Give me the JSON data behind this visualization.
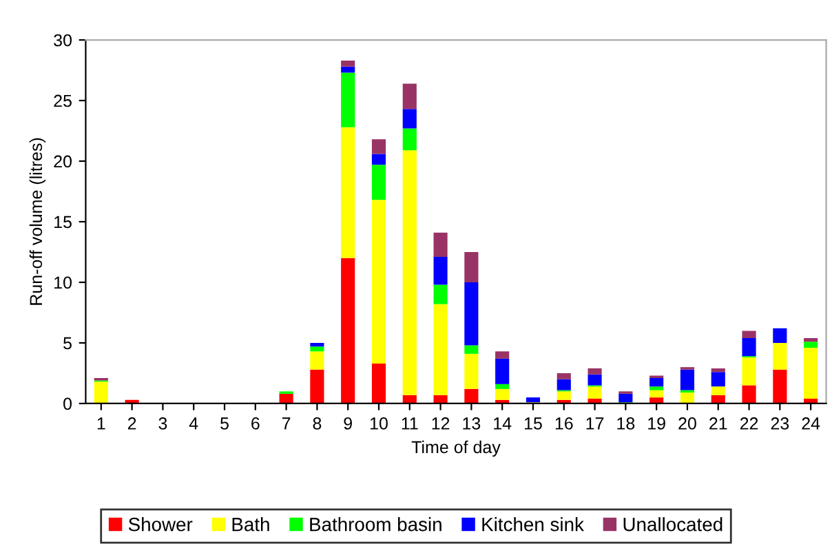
{
  "chart_data": {
    "type": "bar",
    "stacked": true,
    "xlabel": "Time of day",
    "ylabel": "Run-off volume (litres)",
    "categories": [
      "1",
      "2",
      "3",
      "4",
      "5",
      "6",
      "7",
      "8",
      "9",
      "10",
      "11",
      "12",
      "13",
      "14",
      "15",
      "16",
      "17",
      "18",
      "19",
      "20",
      "21",
      "22",
      "23",
      "24"
    ],
    "series": [
      {
        "name": "Shower",
        "color": "#ff0000",
        "values": [
          0,
          0.3,
          0,
          0,
          0,
          0,
          0.8,
          2.8,
          12,
          3.3,
          0.7,
          0.7,
          1.2,
          0.3,
          0,
          0.3,
          0.4,
          0,
          0.5,
          0,
          0.7,
          1.5,
          2.8,
          0.4
        ]
      },
      {
        "name": "Bath",
        "color": "#ffff00",
        "values": [
          1.8,
          0,
          0,
          0,
          0,
          0,
          0,
          1.5,
          10.8,
          13.5,
          20.2,
          7.5,
          2.9,
          0.9,
          0.1,
          0.7,
          1.0,
          0,
          0.6,
          0.9,
          0.7,
          2.3,
          2.2,
          4.2
        ]
      },
      {
        "name": "Bathroom basin",
        "color": "#00ff00",
        "values": [
          0.1,
          0,
          0,
          0,
          0,
          0,
          0.2,
          0.4,
          4.5,
          2.9,
          1.8,
          1.6,
          0.7,
          0.4,
          0,
          0.1,
          0.1,
          0.1,
          0.3,
          0.2,
          0,
          0.1,
          0,
          0.5
        ]
      },
      {
        "name": "Kitchen sink",
        "color": "#0000ff",
        "values": [
          0,
          0,
          0,
          0,
          0,
          0,
          0,
          0.3,
          0.5,
          0.9,
          1.6,
          2.3,
          5.2,
          2.1,
          0.4,
          0.9,
          0.9,
          0.7,
          0.7,
          1.7,
          1.2,
          1.5,
          1.2,
          0
        ]
      },
      {
        "name": "Unallocated",
        "color": "#993366",
        "values": [
          0.2,
          0,
          0,
          0,
          0,
          0,
          0,
          0,
          0.5,
          1.2,
          2.1,
          2.0,
          2.5,
          0.6,
          0,
          0.5,
          0.5,
          0.2,
          0.2,
          0.2,
          0.3,
          0.6,
          0,
          0.3
        ]
      }
    ],
    "ylim": [
      0,
      30
    ],
    "yticks": [
      0,
      5,
      10,
      15,
      20,
      25,
      30
    ],
    "grid": false,
    "legend": "bottom"
  }
}
